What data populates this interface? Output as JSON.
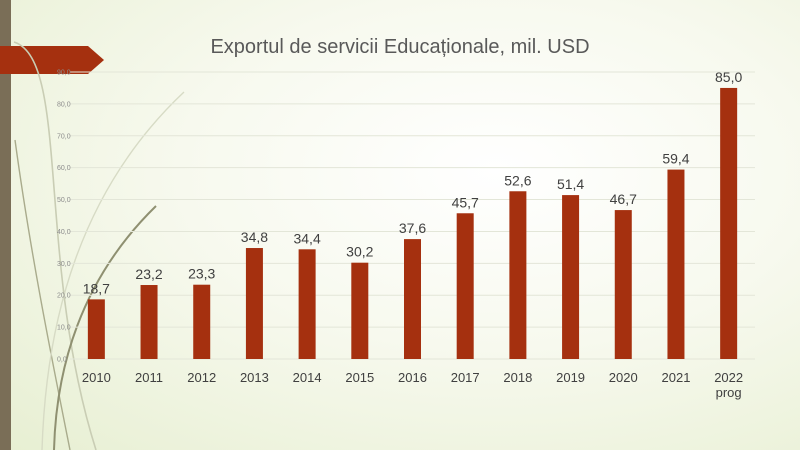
{
  "colors": {
    "bar": "#a5300f",
    "background": "#f4f7e8",
    "sidebar": "#7a6e57",
    "banner": "#a5300f",
    "gridline": "#e3e6d8"
  },
  "chart_data": {
    "type": "bar",
    "title": "Exportul de servicii Educaționale, mil. USD",
    "xlabel": "",
    "ylabel": "",
    "ylim": [
      0,
      90
    ],
    "yticks": [
      "0,0",
      "10,0",
      "20,0",
      "30,0",
      "40,0",
      "50,0",
      "60,0",
      "70,0",
      "80,0",
      "90,0"
    ],
    "grid": true,
    "categories": [
      [
        "2010"
      ],
      [
        "2011"
      ],
      [
        "2012"
      ],
      [
        "2013"
      ],
      [
        "2014"
      ],
      [
        "2015"
      ],
      [
        "2016"
      ],
      [
        "2017"
      ],
      [
        "2018"
      ],
      [
        "2019"
      ],
      [
        "2020"
      ],
      [
        "2021"
      ],
      [
        "2022",
        "prog"
      ]
    ],
    "values": [
      18.7,
      23.2,
      23.3,
      34.8,
      34.4,
      30.2,
      37.6,
      45.7,
      52.6,
      51.4,
      46.7,
      59.4,
      85.0
    ],
    "data_labels": [
      "18,7",
      "23,2",
      "23,3",
      "34,8",
      "34,4",
      "30,2",
      "37,6",
      "45,7",
      "52,6",
      "51,4",
      "46,7",
      "59,4",
      "85,0"
    ]
  }
}
